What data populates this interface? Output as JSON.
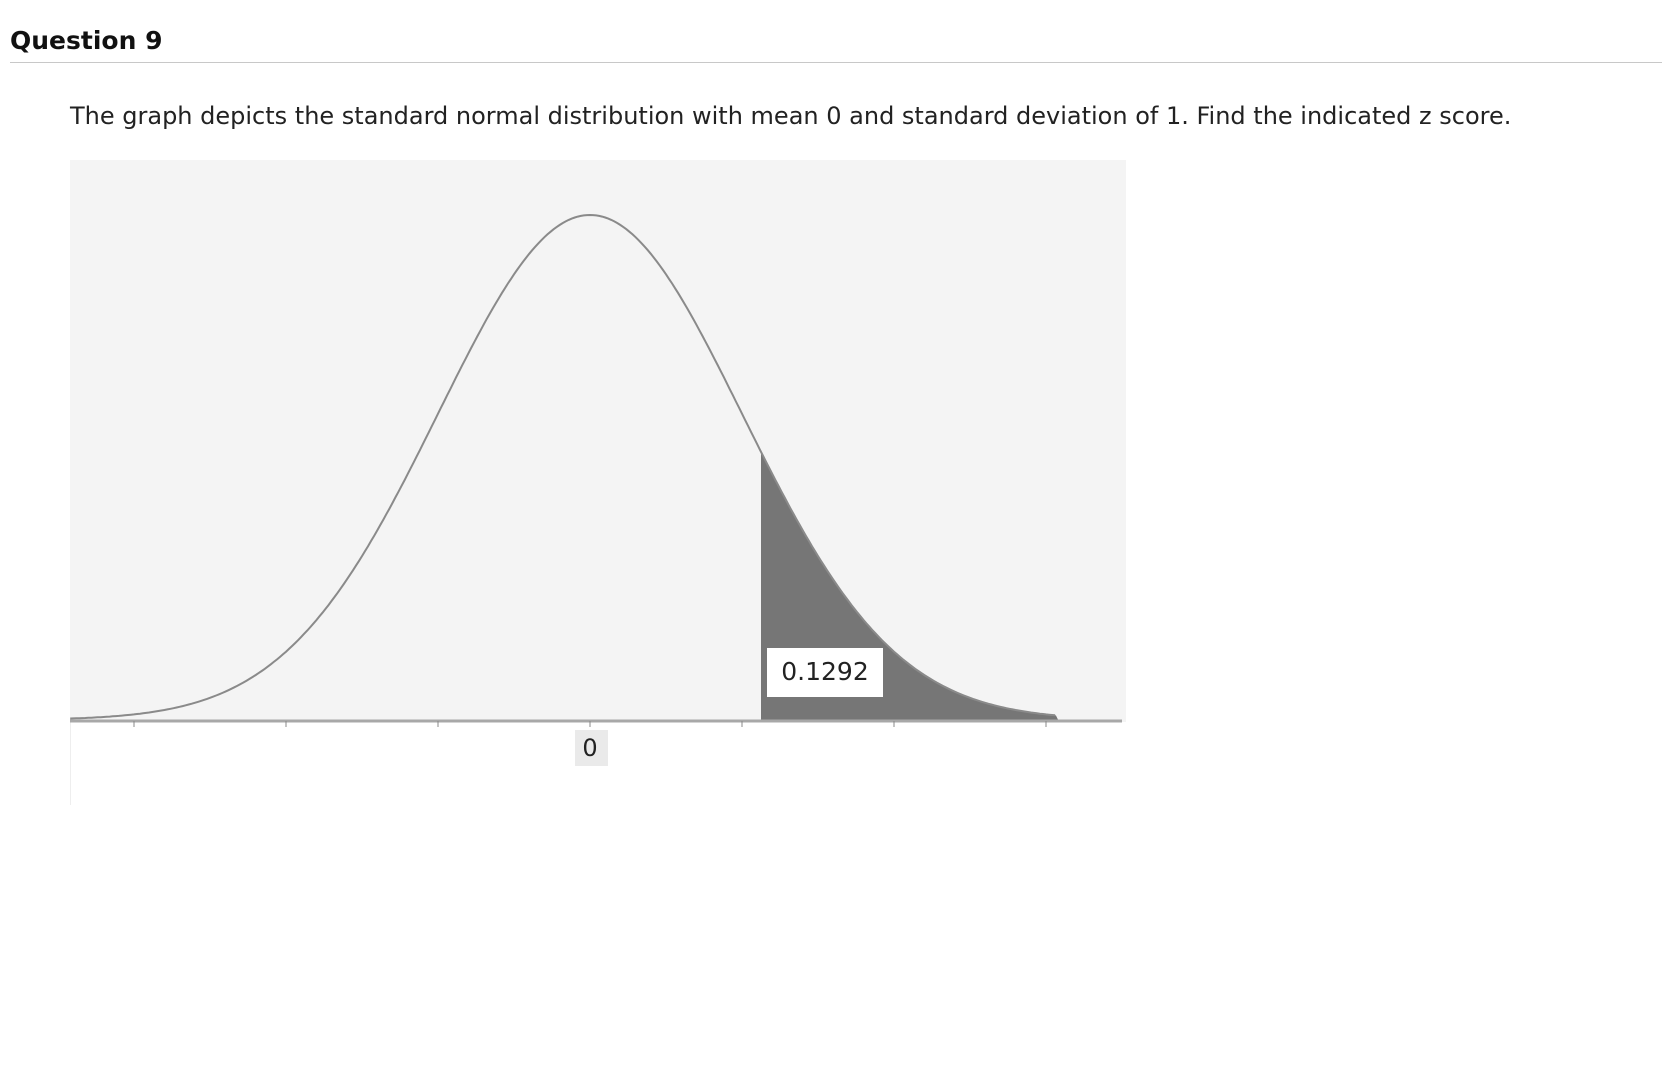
{
  "question": {
    "title": "Question 9",
    "text": "The graph depicts the standard normal distribution with mean 0 and standard deviation of 1. Find the indicated z score."
  },
  "figure": {
    "axis_label": "0",
    "area_label": "0.1292"
  }
}
